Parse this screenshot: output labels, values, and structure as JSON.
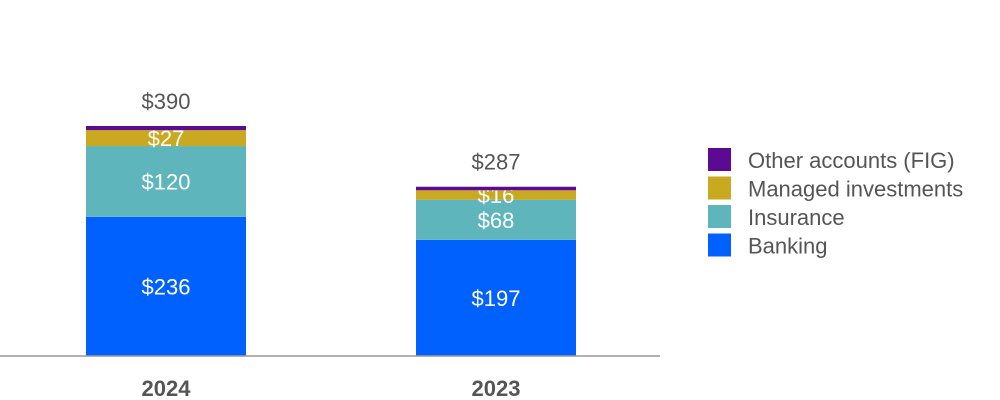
{
  "chart_data": {
    "type": "bar",
    "stacked": true,
    "categories": [
      "2024",
      "2023"
    ],
    "series": [
      {
        "name": "Banking",
        "values": [
          236,
          197
        ],
        "color": "#0061ff"
      },
      {
        "name": "Insurance",
        "values": [
          120,
          68
        ],
        "color": "#5eb5bc"
      },
      {
        "name": "Managed investments",
        "values": [
          27,
          16
        ],
        "color": "#c8a920"
      },
      {
        "name": "Other accounts (FIG)",
        "values": [
          7,
          6
        ],
        "color": "#5b0a91"
      }
    ],
    "data_labels": [
      [
        "$236",
        "$197"
      ],
      [
        "$120",
        "$68"
      ],
      [
        "$27",
        "$16"
      ],
      [
        "",
        ""
      ]
    ],
    "totals": [
      "$390",
      "$287"
    ],
    "legend_order": [
      "Other accounts (FIG)",
      "Managed investments",
      "Insurance",
      "Banking"
    ],
    "legend_position": "right",
    "title": "",
    "xlabel": "",
    "ylabel": "",
    "ylim": [
      0,
      390
    ],
    "grid": false
  }
}
